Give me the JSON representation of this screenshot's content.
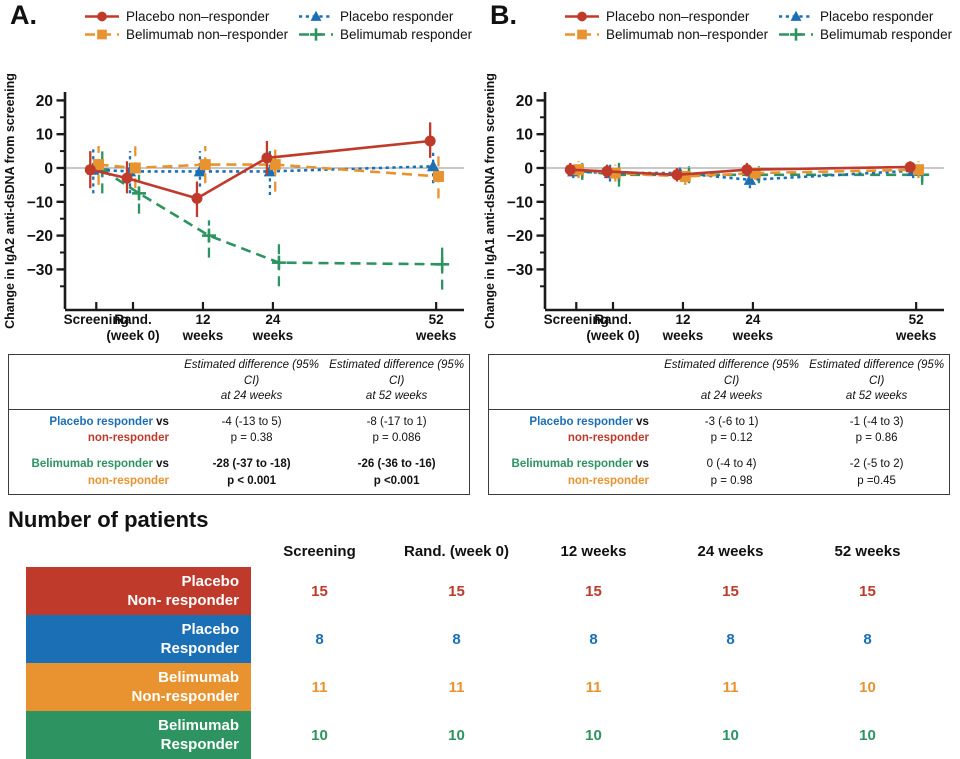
{
  "patients": {
    "title": "Number of patients",
    "col_headers": [
      "Screening",
      "Rand. (week 0)",
      "12 weeks",
      "24 weeks",
      "52 weeks"
    ],
    "rows": [
      {
        "label_lines": [
          "Placebo",
          "Non- responder"
        ],
        "color": "#bf3a2b",
        "values": [
          15,
          15,
          15,
          15,
          15
        ]
      },
      {
        "label_lines": [
          "Placebo",
          "Responder"
        ],
        "color": "#1b6fb5",
        "values": [
          8,
          8,
          8,
          8,
          8
        ]
      },
      {
        "label_lines": [
          "Belimumab",
          "Non-responder"
        ],
        "color": "#e8932f",
        "values": [
          11,
          11,
          11,
          11,
          10
        ]
      },
      {
        "label_lines": [
          "Belimumab",
          "Responder"
        ],
        "color": "#2d9360",
        "values": [
          10,
          10,
          10,
          10,
          10
        ]
      }
    ]
  },
  "stats_tables": [
    {
      "col_headers": [
        {
          "top": "Estimated difference (95% CI)",
          "bottom": "at 24 weeks"
        },
        {
          "top": "Estimated difference (95% CI)",
          "bottom": "at 52 weeks"
        }
      ],
      "rows": [
        {
          "group": "Placebo responder",
          "group_color": "#1b6fb5",
          "vs": " vs",
          "comparator": "non-responder",
          "comparator_color": "#bf3a2b",
          "bold": false,
          "cells": [
            {
              "estimate": "-4 (-13 to 5)",
              "p_value": "p = 0.38"
            },
            {
              "estimate": "-8 (-17 to 1)",
              "p_value": "p = 0.086"
            }
          ]
        },
        {
          "group": "Belimumab responder",
          "group_color": "#2d9360",
          "vs": " vs",
          "comparator": "non-responder",
          "comparator_color": "#e8932f",
          "bold": true,
          "cells": [
            {
              "estimate": "-28 (-37 to -18)",
              "p_value": "p < 0.001"
            },
            {
              "estimate": "-26 (-36 to -16)",
              "p_value": "p <0.001"
            }
          ]
        }
      ]
    },
    {
      "col_headers": [
        {
          "top": "Estimated difference (95% CI)",
          "bottom": "at 24 weeks"
        },
        {
          "top": "Estimated difference (95% CI)",
          "bottom": "at 52 weeks"
        }
      ],
      "rows": [
        {
          "group": "Placebo responder",
          "group_color": "#1b6fb5",
          "vs": " vs",
          "comparator": "non-responder",
          "comparator_color": "#bf3a2b",
          "bold": false,
          "cells": [
            {
              "estimate": "-3 (-6 to 1)",
              "p_value": "p = 0.12"
            },
            {
              "estimate": "-1 (-4 to 3)",
              "p_value": "p = 0.86"
            }
          ]
        },
        {
          "group": "Belimumab responder",
          "group_color": "#2d9360",
          "vs": " vs",
          "comparator": "non-responder",
          "comparator_color": "#e8932f",
          "bold": false,
          "cells": [
            {
              "estimate": "0 (-4 to 4)",
              "p_value": "p = 0.98"
            },
            {
              "estimate": "-2 (-5 to 2)",
              "p_value": "p =0.45"
            }
          ]
        }
      ]
    }
  ],
  "chart_data": [
    {
      "id": "A",
      "type": "line",
      "panel_label": "A.",
      "ylabel": "Change in IgA2 anti-dsDNA from screening",
      "ylim": [
        -42,
        22
      ],
      "yticks": [
        20,
        10,
        0,
        -10,
        -20,
        -30
      ],
      "y_minor_ticks": [
        15,
        5,
        -5,
        -15,
        -25,
        -35
      ],
      "zero_line": true,
      "x_categories": [
        {
          "week": -6.3,
          "label_lines": [
            "Screening"
          ]
        },
        {
          "week": 0,
          "label_lines": [
            "Rand.",
            "(week 0)"
          ]
        },
        {
          "week": 12,
          "label_lines": [
            "12",
            "weeks"
          ]
        },
        {
          "week": 24,
          "label_lines": [
            "24",
            "weeks"
          ]
        },
        {
          "week": 52,
          "label_lines": [
            "52",
            "weeks"
          ]
        }
      ],
      "series": [
        {
          "key": "placebo_nonresponder",
          "name": "Placebo non–responder",
          "color": "#bf3a2b",
          "marker": "circle",
          "line_style": "solid",
          "y": [
            -0.5,
            -3,
            -9,
            3,
            8
          ],
          "ci_lo": [
            -6,
            -7.5,
            -14.5,
            -2,
            3
          ],
          "ci_hi": [
            5,
            2,
            -4,
            8,
            13.5
          ]
        },
        {
          "key": "placebo_responder",
          "name": "Placebo responder",
          "color": "#1b6fb5",
          "marker": "triangle",
          "line_style": "dotted",
          "y": [
            -0.5,
            -1,
            -1,
            -1,
            0.5
          ],
          "ci_lo": [
            -7.5,
            -7.5,
            -5.5,
            -8,
            -4.5
          ],
          "ci_hi": [
            6.5,
            5,
            5,
            5,
            5.5
          ]
        },
        {
          "key": "belimumab_nonresponder",
          "name": "Belimumab non–responder",
          "color": "#e8932f",
          "marker": "square",
          "line_style": "dashed",
          "y": [
            1,
            0,
            1,
            1,
            -2.5
          ],
          "ci_lo": [
            -5,
            -6,
            -4.5,
            -7,
            -9
          ],
          "ci_hi": [
            6.5,
            6.5,
            6.5,
            6.5,
            3.5
          ]
        },
        {
          "key": "belimumab_responder",
          "name": "Belimumab responder",
          "color": "#2d9360",
          "marker": "plus",
          "line_style": "dashed",
          "y": [
            -0.5,
            -7.5,
            -20,
            -28,
            -28.5
          ],
          "ci_lo": [
            -7.5,
            -13.5,
            -26.5,
            -35,
            -36
          ],
          "ci_hi": [
            6,
            -2,
            -15.5,
            -21.5,
            -22
          ]
        }
      ]
    },
    {
      "id": "B",
      "type": "line",
      "panel_label": "B.",
      "ylabel": "Change in IgA1 anti-dsDNA from screening",
      "ylim": [
        -42,
        22
      ],
      "yticks": [
        20,
        10,
        0,
        -10,
        -20,
        -30
      ],
      "y_minor_ticks": [
        15,
        5,
        -5,
        -15,
        -25,
        -35
      ],
      "zero_line": true,
      "x_categories": [
        {
          "week": -6.3,
          "label_lines": [
            "Screening"
          ]
        },
        {
          "week": 0,
          "label_lines": [
            "Rand.",
            "(week 0)"
          ]
        },
        {
          "week": 12,
          "label_lines": [
            "12",
            "weeks"
          ]
        },
        {
          "week": 24,
          "label_lines": [
            "24",
            "weeks"
          ]
        },
        {
          "week": 52,
          "label_lines": [
            "52",
            "weeks"
          ]
        }
      ],
      "series": [
        {
          "key": "placebo_nonresponder",
          "name": "Placebo non–responder",
          "color": "#bf3a2b",
          "marker": "circle",
          "line_style": "solid",
          "y": [
            -0.5,
            -1,
            -2,
            -0.5,
            0.3
          ],
          "ci_lo": [
            -2.5,
            -3,
            -4,
            -2.5,
            -1.5
          ],
          "ci_hi": [
            1.5,
            1,
            0,
            1.5,
            2
          ]
        },
        {
          "key": "placebo_responder",
          "name": "Placebo responder",
          "color": "#1b6fb5",
          "marker": "triangle",
          "line_style": "dotted",
          "y": [
            -1,
            -1.5,
            -1.5,
            -3.5,
            -0.8
          ],
          "ci_lo": [
            -3,
            -4,
            -3.5,
            -6,
            -3
          ],
          "ci_hi": [
            1,
            1,
            0.5,
            -1,
            1.5
          ]
        },
        {
          "key": "belimumab_nonresponder",
          "name": "Belimumab non–responder",
          "color": "#e8932f",
          "marker": "square",
          "line_style": "dashed",
          "y": [
            -0.5,
            -1.5,
            -2.5,
            -1.5,
            -0.5
          ],
          "ci_lo": [
            -3,
            -4,
            -5,
            -3.5,
            -3
          ],
          "ci_hi": [
            2,
            1,
            0,
            0.5,
            2
          ]
        },
        {
          "key": "belimumab_responder",
          "name": "Belimumab responder",
          "color": "#2d9360",
          "marker": "plus",
          "line_style": "dashed",
          "y": [
            -1,
            -2,
            -2,
            -2,
            -2
          ],
          "ci_lo": [
            -3.5,
            -5.5,
            -4.5,
            -4.5,
            -5
          ],
          "ci_hi": [
            1.5,
            1.5,
            0.5,
            0.5,
            1
          ]
        }
      ]
    }
  ]
}
